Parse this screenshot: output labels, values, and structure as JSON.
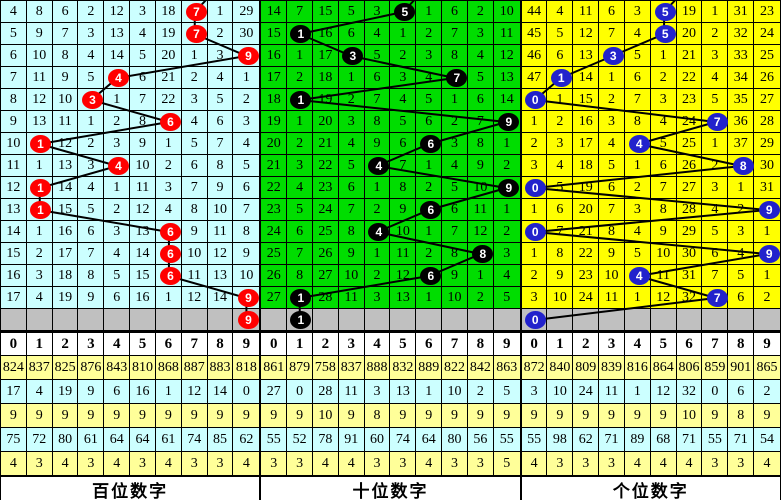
{
  "colors": {
    "grid_line": "#000000",
    "pending_row_bg": "#C0C0C0",
    "stat_row_yellow": "#FFFF99",
    "stat_row_cyan": "#CCFFFF",
    "header_bg": "#FFFFFF",
    "ball_text": "#FFFFFF",
    "trend_line": "#000000"
  },
  "chart_data": [
    {
      "type": "table",
      "title": "百位数字",
      "cell_bg": "#CCFFFF",
      "ball_color": "#FF0000",
      "columns": [
        "0",
        "1",
        "2",
        "3",
        "4",
        "5",
        "6",
        "7",
        "8",
        "9"
      ],
      "grid_rows": [
        [
          "4",
          "8",
          "6",
          "2",
          "12",
          "3",
          "18",
          "",
          "1",
          "29"
        ],
        [
          "5",
          "9",
          "7",
          "3",
          "13",
          "4",
          "19",
          "",
          "2",
          "30"
        ],
        [
          "6",
          "10",
          "8",
          "4",
          "14",
          "5",
          "20",
          "1",
          "3",
          ""
        ],
        [
          "7",
          "11",
          "9",
          "5",
          "",
          "6",
          "21",
          "2",
          "4",
          "1"
        ],
        [
          "8",
          "12",
          "10",
          "",
          "1",
          "7",
          "22",
          "3",
          "5",
          "2"
        ],
        [
          "9",
          "13",
          "11",
          "1",
          "2",
          "8",
          "",
          "4",
          "6",
          "3"
        ],
        [
          "10",
          "",
          "12",
          "2",
          "3",
          "9",
          "1",
          "5",
          "7",
          "4"
        ],
        [
          "11",
          "1",
          "13",
          "3",
          "",
          "10",
          "2",
          "6",
          "8",
          "5"
        ],
        [
          "12",
          "",
          "14",
          "4",
          "1",
          "11",
          "3",
          "7",
          "9",
          "6"
        ],
        [
          "13",
          "",
          "15",
          "5",
          "2",
          "12",
          "4",
          "8",
          "10",
          "7"
        ],
        [
          "14",
          "1",
          "16",
          "6",
          "3",
          "13",
          "",
          "9",
          "11",
          "8"
        ],
        [
          "15",
          "2",
          "17",
          "7",
          "4",
          "14",
          "",
          "10",
          "12",
          "9"
        ],
        [
          "16",
          "3",
          "18",
          "8",
          "5",
          "15",
          "",
          "11",
          "13",
          "10"
        ],
        [
          "17",
          "4",
          "19",
          "9",
          "6",
          "16",
          "1",
          "12",
          "14",
          ""
        ]
      ],
      "drawn_sequence": [
        7,
        7,
        9,
        4,
        3,
        6,
        1,
        4,
        1,
        1,
        6,
        6,
        6,
        9
      ],
      "pending_digit": 9,
      "stats_rows": [
        [
          "824",
          "837",
          "825",
          "876",
          "843",
          "810",
          "868",
          "887",
          "883",
          "818"
        ],
        [
          "17",
          "4",
          "19",
          "9",
          "6",
          "16",
          "1",
          "12",
          "14",
          "0"
        ],
        [
          "9",
          "9",
          "9",
          "9",
          "9",
          "9",
          "9",
          "9",
          "9",
          "9"
        ],
        [
          "75",
          "72",
          "80",
          "61",
          "64",
          "64",
          "61",
          "74",
          "85",
          "62"
        ],
        [
          "4",
          "3",
          "4",
          "3",
          "4",
          "3",
          "4",
          "3",
          "3",
          "4"
        ]
      ]
    },
    {
      "type": "table",
      "title": "十位数字",
      "cell_bg": "#00DD00",
      "ball_color": "#000000",
      "columns": [
        "0",
        "1",
        "2",
        "3",
        "4",
        "5",
        "6",
        "7",
        "8",
        "9"
      ],
      "grid_rows": [
        [
          "14",
          "7",
          "15",
          "5",
          "3",
          "",
          "1",
          "6",
          "2",
          "10"
        ],
        [
          "15",
          "",
          "16",
          "6",
          "4",
          "1",
          "2",
          "7",
          "3",
          "11"
        ],
        [
          "16",
          "1",
          "17",
          "",
          "5",
          "2",
          "3",
          "8",
          "4",
          "12"
        ],
        [
          "17",
          "2",
          "18",
          "1",
          "6",
          "3",
          "4",
          "",
          "5",
          "13"
        ],
        [
          "18",
          "",
          "19",
          "2",
          "7",
          "4",
          "5",
          "1",
          "6",
          "14"
        ],
        [
          "19",
          "1",
          "20",
          "3",
          "8",
          "5",
          "6",
          "2",
          "7",
          ""
        ],
        [
          "20",
          "2",
          "21",
          "4",
          "9",
          "6",
          "",
          "3",
          "8",
          "1"
        ],
        [
          "21",
          "3",
          "22",
          "5",
          "",
          "7",
          "1",
          "4",
          "9",
          "2"
        ],
        [
          "22",
          "4",
          "23",
          "6",
          "1",
          "8",
          "2",
          "5",
          "10",
          ""
        ],
        [
          "23",
          "5",
          "24",
          "7",
          "2",
          "9",
          "",
          "6",
          "11",
          "1"
        ],
        [
          "24",
          "6",
          "25",
          "8",
          "",
          "10",
          "1",
          "7",
          "12",
          "2"
        ],
        [
          "25",
          "7",
          "26",
          "9",
          "1",
          "11",
          "2",
          "8",
          "",
          "3"
        ],
        [
          "26",
          "8",
          "27",
          "10",
          "2",
          "12",
          "",
          "9",
          "1",
          "4"
        ],
        [
          "27",
          "",
          "28",
          "11",
          "3",
          "13",
          "1",
          "10",
          "2",
          "5"
        ]
      ],
      "drawn_sequence": [
        5,
        1,
        3,
        7,
        1,
        9,
        6,
        4,
        9,
        6,
        4,
        8,
        6,
        1
      ],
      "pending_digit": 1,
      "stats_rows": [
        [
          "861",
          "879",
          "758",
          "837",
          "888",
          "832",
          "889",
          "822",
          "842",
          "863"
        ],
        [
          "27",
          "0",
          "28",
          "11",
          "3",
          "13",
          "1",
          "10",
          "2",
          "5"
        ],
        [
          "9",
          "9",
          "10",
          "9",
          "8",
          "9",
          "9",
          "9",
          "9",
          "9"
        ],
        [
          "55",
          "52",
          "78",
          "91",
          "60",
          "74",
          "64",
          "80",
          "56",
          "55"
        ],
        [
          "3",
          "3",
          "4",
          "4",
          "3",
          "3",
          "4",
          "3",
          "3",
          "5"
        ]
      ]
    },
    {
      "type": "table",
      "title": "个位数字",
      "cell_bg": "#FFFF00",
      "ball_color": "#2222CC",
      "columns": [
        "0",
        "1",
        "2",
        "3",
        "4",
        "5",
        "6",
        "7",
        "8",
        "9"
      ],
      "grid_rows": [
        [
          "44",
          "4",
          "11",
          "6",
          "3",
          "",
          "19",
          "1",
          "31",
          "23"
        ],
        [
          "45",
          "5",
          "12",
          "7",
          "4",
          "",
          "20",
          "2",
          "32",
          "24"
        ],
        [
          "46",
          "6",
          "13",
          "",
          "5",
          "1",
          "21",
          "3",
          "33",
          "25"
        ],
        [
          "47",
          "",
          "14",
          "1",
          "6",
          "2",
          "22",
          "4",
          "34",
          "26"
        ],
        [
          "",
          "1",
          "15",
          "2",
          "7",
          "3",
          "23",
          "5",
          "35",
          "27"
        ],
        [
          "1",
          "2",
          "16",
          "3",
          "8",
          "4",
          "24",
          "",
          "36",
          "28"
        ],
        [
          "2",
          "3",
          "17",
          "4",
          "",
          "5",
          "25",
          "1",
          "37",
          "29"
        ],
        [
          "3",
          "4",
          "18",
          "5",
          "1",
          "6",
          "26",
          "2",
          "",
          "30"
        ],
        [
          "",
          "5",
          "19",
          "6",
          "2",
          "7",
          "27",
          "3",
          "1",
          "31"
        ],
        [
          "1",
          "6",
          "20",
          "7",
          "3",
          "8",
          "28",
          "4",
          "2",
          ""
        ],
        [
          "",
          "7",
          "21",
          "8",
          "4",
          "9",
          "29",
          "5",
          "3",
          "1"
        ],
        [
          "1",
          "8",
          "22",
          "9",
          "5",
          "10",
          "30",
          "6",
          "4",
          ""
        ],
        [
          "2",
          "9",
          "23",
          "10",
          "",
          "11",
          "31",
          "7",
          "5",
          "1"
        ],
        [
          "3",
          "10",
          "24",
          "11",
          "1",
          "12",
          "32",
          "",
          "6",
          "2"
        ]
      ],
      "drawn_sequence": [
        5,
        5,
        3,
        1,
        0,
        7,
        4,
        8,
        0,
        9,
        0,
        9,
        4,
        7
      ],
      "pending_digit": 0,
      "stats_rows": [
        [
          "872",
          "840",
          "809",
          "839",
          "816",
          "864",
          "806",
          "859",
          "901",
          "865"
        ],
        [
          "3",
          "10",
          "24",
          "11",
          "1",
          "12",
          "32",
          "0",
          "6",
          "2"
        ],
        [
          "9",
          "9",
          "9",
          "9",
          "9",
          "9",
          "10",
          "9",
          "8",
          "9"
        ],
        [
          "55",
          "98",
          "62",
          "71",
          "89",
          "68",
          "71",
          "55",
          "71",
          "54"
        ],
        [
          "4",
          "3",
          "3",
          "3",
          "4",
          "4",
          "4",
          "3",
          "3",
          "4"
        ]
      ]
    }
  ]
}
